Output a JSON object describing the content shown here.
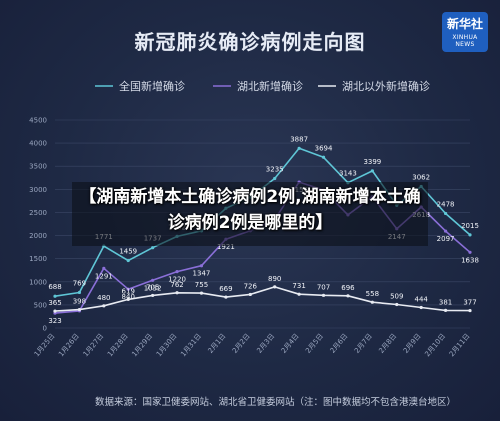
{
  "chart_data": {
    "type": "line",
    "title": "新冠肺炎确诊病例走向图",
    "categories": [
      "1月25日",
      "1月26日",
      "1月27日",
      "1月28日",
      "1月29日",
      "1月30日",
      "1月31日",
      "2月1日",
      "2月2日",
      "2月3日",
      "2月4日",
      "2月5日",
      "2月6日",
      "2月7日",
      "2月8日",
      "2月9日",
      "2月10日",
      "2月11日"
    ],
    "ylim": [
      0,
      4500
    ],
    "yticks": [
      0,
      500,
      1000,
      1500,
      2000,
      2500,
      3000,
      3500,
      4000,
      4500
    ],
    "legend_position": "top",
    "series": [
      {
        "name": "全国新增确诊",
        "color": "#5fc6d6",
        "values": [
          688,
          769,
          1771,
          1459,
          1737,
          1982,
          2102,
          2590,
          2829,
          3235,
          3887,
          3694,
          3143,
          3399,
          2656,
          3062,
          2478,
          2015
        ],
        "labels": [
          "688",
          "769",
          "1771",
          "1459",
          "1737",
          "1982",
          "",
          "",
          "",
          "3235",
          "3887",
          "3694",
          "3143",
          "3399",
          "",
          "3062",
          "2478",
          "2015"
        ]
      },
      {
        "name": "湖北新增确诊",
        "color": "#8a6fd8",
        "values": [
          323,
          371,
          1291,
          840,
          1032,
          1220,
          1347,
          1921,
          2103,
          2345,
          3156,
          2987,
          2447,
          2841,
          2147,
          2618,
          2097,
          1638
        ],
        "labels": [
          "323",
          "",
          "1291",
          "840",
          "1032",
          "1220",
          "1347",
          "1921",
          "",
          "",
          "3156",
          "",
          "",
          "",
          "2147",
          "2618",
          "2097",
          "1638"
        ]
      },
      {
        "name": "湖北以外新增确诊",
        "color": "#e8ebf2",
        "values": [
          365,
          398,
          480,
          619,
          705,
          762,
          755,
          669,
          726,
          890,
          731,
          707,
          696,
          558,
          509,
          444,
          381,
          377
        ],
        "labels": [
          "365",
          "398",
          "480",
          "619",
          "705",
          "762",
          "755",
          "669",
          "726",
          "890",
          "731",
          "707",
          "696",
          "558",
          "509",
          "444",
          "381",
          "377"
        ]
      }
    ]
  },
  "source_note": "数据来源：国家卫健委网站、湖北省卫健委网站（注：图中数据均不包含港澳台地区）",
  "logo": {
    "line1": "新华社",
    "line2": "XINHUA NEWS"
  },
  "headline": "【湖南新增本土确诊病例2例,湖南新增本土确诊病例2例是哪里的】"
}
